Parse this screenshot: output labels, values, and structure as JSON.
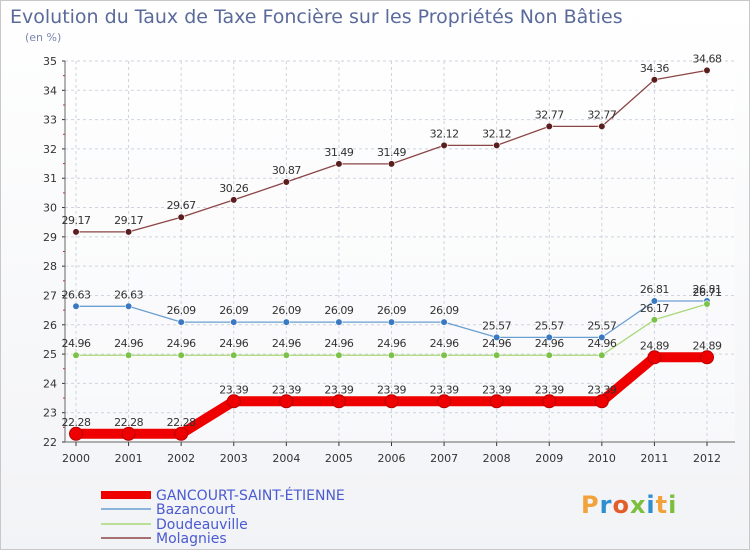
{
  "title": "Evolution du Taux de Taxe Foncière sur les Propriétés Non Bâties",
  "subtitle": "(en %)",
  "logo": {
    "text": "Proxiti",
    "colors": [
      "#f2a23a",
      "#2e8fd0",
      "#e35d2a",
      "#7cbf3c",
      "#2e8fd0",
      "#f2a23a",
      "#7cbf3c"
    ]
  },
  "chart_data": {
    "type": "line",
    "title": "Evolution du Taux de Taxe Foncière sur les Propriétés Non Bâties",
    "ylabel": "(en %)",
    "x": [
      "2000",
      "2001",
      "2002",
      "2003",
      "2004",
      "2005",
      "2006",
      "2007",
      "2008",
      "2009",
      "2010",
      "2011",
      "2012"
    ],
    "ylim": [
      22,
      35
    ],
    "yticks": [
      22,
      23,
      24,
      25,
      26,
      27,
      28,
      29,
      30,
      31,
      32,
      33,
      34,
      35
    ],
    "grid": true,
    "legend_position": "bottom",
    "series": [
      {
        "name": "GANCOURT-SAINT-ÉTIENNE",
        "color": "#ee0000",
        "width": 10,
        "values": [
          22.28,
          22.28,
          22.28,
          23.39,
          23.39,
          23.39,
          23.39,
          23.39,
          23.39,
          23.39,
          23.39,
          24.89,
          24.89
        ],
        "labels": [
          "22.28",
          "22.28",
          "22.28",
          "23.39",
          "23.39",
          "23.39",
          "23.39",
          "23.39",
          "23.39",
          "23.39",
          "23.39",
          "24.89",
          "24.89"
        ]
      },
      {
        "name": "Bazancourt",
        "color": "#6a9fd2",
        "marker": "#3a78c2",
        "width": 1.3,
        "values": [
          26.63,
          26.63,
          26.09,
          26.09,
          26.09,
          26.09,
          26.09,
          26.09,
          25.57,
          25.57,
          25.57,
          26.81,
          26.81
        ],
        "labels": [
          "26.63",
          "26.63",
          "26.09",
          "26.09",
          "26.09",
          "26.09",
          "26.09",
          "26.09",
          "25.57",
          "25.57",
          "25.57",
          "26.81",
          "26.81"
        ]
      },
      {
        "name": "Doudeauville",
        "color": "#a8d878",
        "marker": "#7cc24a",
        "width": 1.3,
        "values": [
          24.96,
          24.96,
          24.96,
          24.96,
          24.96,
          24.96,
          24.96,
          24.96,
          24.96,
          24.96,
          24.96,
          26.17,
          26.71
        ],
        "labels": [
          "24.96",
          "24.96",
          "24.96",
          "24.96",
          "24.96",
          "24.96",
          "24.96",
          "24.96",
          "24.96",
          "24.96",
          "24.96",
          "26.17",
          "26.71"
        ]
      },
      {
        "name": "Molagnies",
        "color": "#8b4545",
        "marker": "#5a1e1e",
        "width": 1.3,
        "values": [
          29.17,
          29.17,
          29.67,
          30.26,
          30.87,
          31.49,
          31.49,
          32.12,
          32.12,
          32.77,
          32.77,
          34.36,
          34.68
        ],
        "labels": [
          "29.17",
          "29.17",
          "29.67",
          "30.26",
          "30.87",
          "31.49",
          "31.49",
          "32.12",
          "32.12",
          "32.77",
          "32.77",
          "34.36",
          "34.68"
        ]
      }
    ]
  }
}
